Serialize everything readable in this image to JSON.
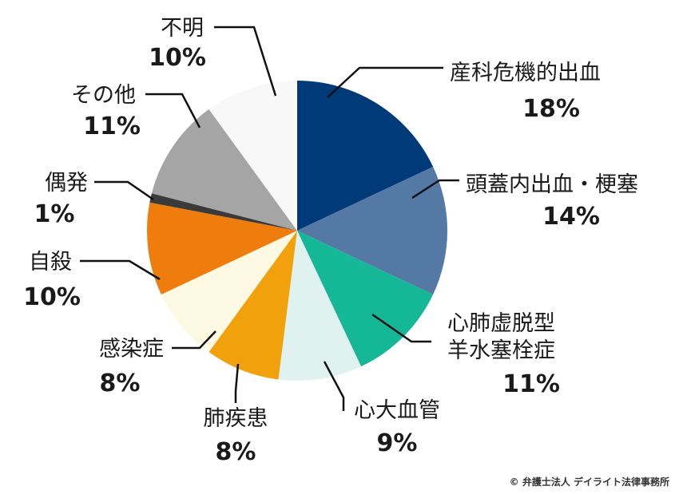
{
  "chart_data": {
    "type": "pie",
    "title": "",
    "start_angle_deg": 0,
    "direction": "clockwise",
    "slices": [
      {
        "label": "産科危機的出血",
        "value": 18,
        "value_label": "18%",
        "color": "#003a78"
      },
      {
        "label": "頭蓋内出血・梗塞",
        "value": 14,
        "value_label": "14%",
        "color": "#5579a5"
      },
      {
        "label": "心肺虚脱型\n羊水塞栓症",
        "value": 11,
        "value_label": "11%",
        "color": "#15b896"
      },
      {
        "label": "心大血管",
        "value": 9,
        "value_label": "9%",
        "color": "#dff2ef"
      },
      {
        "label": "肺疾患",
        "value": 8,
        "value_label": "8%",
        "color": "#f0a10c"
      },
      {
        "label": "感染症",
        "value": 8,
        "value_label": "8%",
        "color": "#fdf9e2"
      },
      {
        "label": "自殺",
        "value": 10,
        "value_label": "10%",
        "color": "#ee7d0e"
      },
      {
        "label": "偶発",
        "value": 1,
        "value_label": "1%",
        "color": "#3a3a3a"
      },
      {
        "label": "その他",
        "value": 11,
        "value_label": "11%",
        "color": "#a5a5a5"
      },
      {
        "label": "不明",
        "value": 10,
        "value_label": "10%",
        "color": "#f8f8f8"
      }
    ]
  },
  "credit": "© 弁護士法人 デイライト法律事務所"
}
